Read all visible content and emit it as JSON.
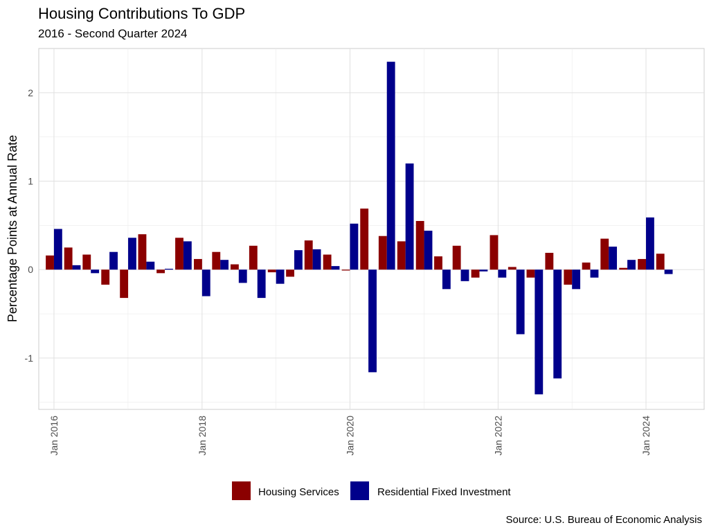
{
  "chart_data": {
    "type": "bar",
    "title": "Housing Contributions To GDP",
    "subtitle": "2016 - Second Quarter 2024",
    "ylabel": "Percentage Points at Annual Rate",
    "caption": "Source: U.S. Bureau of Economic Analysis",
    "ylim": [
      -1.58,
      2.5
    ],
    "xlim": [
      "2015-10-18",
      "2024-10-14"
    ],
    "y_ticks": [
      -1,
      0,
      1,
      2
    ],
    "y_tick_labels": [
      "-1",
      "0",
      "1",
      "2"
    ],
    "x_ticks": [
      "2016-01-01",
      "2018-01-01",
      "2020-01-01",
      "2022-01-01",
      "2024-01-01"
    ],
    "x_tick_labels": [
      "Jan 2016",
      "Jan 2018",
      "Jan 2020",
      "Jan 2022",
      "Jan 2024"
    ],
    "grid": true,
    "legend_position": "bottom",
    "x": [
      "2016-01-01",
      "2016-04-01",
      "2016-07-01",
      "2016-10-01",
      "2017-01-01",
      "2017-04-01",
      "2017-07-01",
      "2017-10-01",
      "2018-01-01",
      "2018-04-01",
      "2018-07-01",
      "2018-10-01",
      "2019-01-01",
      "2019-04-01",
      "2019-07-01",
      "2019-10-01",
      "2020-01-01",
      "2020-04-01",
      "2020-07-01",
      "2020-10-01",
      "2021-01-01",
      "2021-04-01",
      "2021-07-01",
      "2021-10-01",
      "2022-01-01",
      "2022-04-01",
      "2022-07-01",
      "2022-10-01",
      "2023-01-01",
      "2023-04-01",
      "2023-07-01",
      "2023-10-01",
      "2024-01-01",
      "2024-04-01"
    ],
    "series": [
      {
        "name": "Housing Services",
        "color": "#8b0000",
        "values": [
          0.16,
          0.25,
          0.17,
          -0.17,
          -0.32,
          0.4,
          -0.04,
          0.36,
          0.12,
          0.2,
          0.06,
          0.27,
          -0.03,
          -0.08,
          0.33,
          0.17,
          -0.01,
          0.69,
          0.38,
          0.32,
          0.55,
          0.15,
          0.27,
          -0.09,
          0.39,
          0.03,
          -0.09,
          0.19,
          -0.17,
          0.08,
          0.35,
          0.02,
          0.12,
          0.18
        ]
      },
      {
        "name": "Residential Fixed Investment",
        "color": "#00008b",
        "values": [
          0.46,
          0.05,
          -0.04,
          0.2,
          0.36,
          0.09,
          0.01,
          0.32,
          -0.3,
          0.11,
          -0.15,
          -0.32,
          -0.16,
          0.22,
          0.23,
          0.04,
          0.52,
          -1.16,
          2.35,
          1.2,
          0.44,
          -0.22,
          -0.13,
          -0.02,
          -0.09,
          -0.73,
          -1.41,
          -1.23,
          -0.22,
          -0.09,
          0.26,
          0.11,
          0.59,
          -0.05
        ]
      }
    ]
  }
}
